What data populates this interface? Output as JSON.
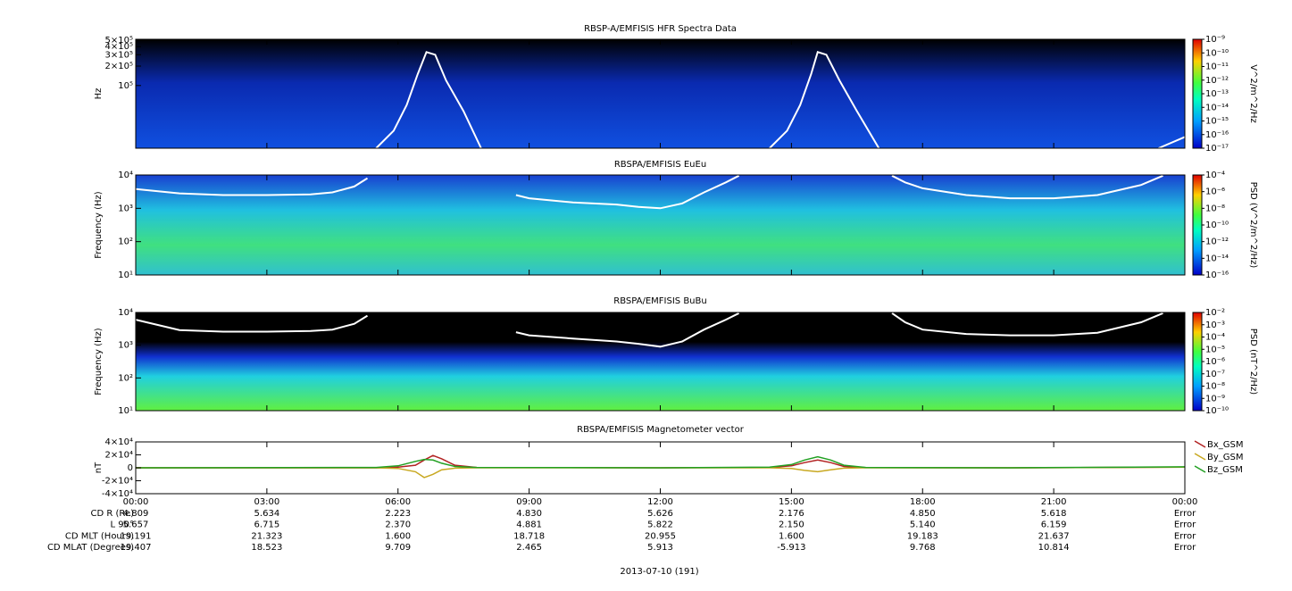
{
  "chart_data": [
    {
      "type": "heatmap",
      "title": "RBSP-A/EMFISIS  HFR Spectra Data",
      "ylabel": "Hz",
      "ylog": true,
      "ylim": [
        10700,
        520000
      ],
      "yticks": [
        {
          "value": 500000,
          "label": "5×10⁵"
        },
        {
          "value": 400000,
          "label": "4×10⁵"
        },
        {
          "value": 300000,
          "label": "3×10⁵"
        },
        {
          "value": 200000,
          "label": "2×10⁵"
        },
        {
          "value": 100000,
          "label": "10⁵"
        }
      ],
      "zlabel": "V^2/m^2/Hz",
      "zlim": [
        1e-17,
        1e-09
      ],
      "zticks": [
        {
          "value": 1e-09,
          "label": "10⁻⁹"
        },
        {
          "value": 1e-10,
          "label": "10⁻¹⁰"
        },
        {
          "value": 1e-11,
          "label": "10⁻¹¹"
        },
        {
          "value": 1e-12,
          "label": "10⁻¹²"
        },
        {
          "value": 1e-13,
          "label": "10⁻¹³"
        },
        {
          "value": 1e-14,
          "label": "10⁻¹⁴"
        },
        {
          "value": 1e-15,
          "label": "10⁻¹⁵"
        },
        {
          "value": 1e-16,
          "label": "10⁻¹⁶"
        },
        {
          "value": 1e-17,
          "label": "10⁻¹⁷"
        }
      ],
      "curve": {
        "color": "#ffffff",
        "x": [
          5.5,
          5.9,
          6.2,
          6.45,
          6.65,
          6.85,
          7.1,
          7.5,
          7.9,
          11,
          14.5,
          14.9,
          15.2,
          15.45,
          15.6,
          15.8,
          16.1,
          16.5,
          17.0,
          20,
          23.4,
          24
        ],
        "values": [
          10700,
          20000,
          50000,
          150000,
          330000,
          300000,
          120000,
          40000,
          10700,
          null,
          10700,
          20000,
          50000,
          150000,
          330000,
          300000,
          120000,
          40000,
          10700,
          null,
          10700,
          16000
        ]
      }
    },
    {
      "type": "heatmap",
      "title": "RBSPA/EMFISIS  EuEu",
      "ylabel": "Frequency (Hz)",
      "ylog": true,
      "ylim": [
        10,
        10000
      ],
      "yticks": [
        {
          "value": 10,
          "label": "10¹"
        },
        {
          "value": 100,
          "label": "10²"
        },
        {
          "value": 1000,
          "label": "10³"
        },
        {
          "value": 10000,
          "label": "10⁴"
        }
      ],
      "zlabel": "PSD (V^2/m^2/Hz)",
      "zlim": [
        1e-16,
        0.0001
      ],
      "zticks": [
        {
          "value": 0.0001,
          "label": "10⁻⁴"
        },
        {
          "value": 1e-06,
          "label": "10⁻⁶"
        },
        {
          "value": 1e-08,
          "label": "10⁻⁸"
        },
        {
          "value": 1e-10,
          "label": "10⁻¹⁰"
        },
        {
          "value": 1e-12,
          "label": "10⁻¹²"
        },
        {
          "value": 1e-14,
          "label": "10⁻¹⁴"
        },
        {
          "value": 1e-16,
          "label": "10⁻¹⁶"
        }
      ],
      "curve": {
        "color": "#ffffff",
        "x": [
          0,
          1,
          2,
          3,
          4,
          4.5,
          5.0,
          5.3,
          7,
          8.7,
          9,
          10,
          11,
          11.5,
          12,
          12.5,
          13,
          13.5,
          13.8,
          15.5,
          17.3,
          17.6,
          18,
          19,
          20,
          21,
          22,
          23,
          23.5
        ],
        "values": [
          3800,
          2800,
          2500,
          2500,
          2600,
          3000,
          4500,
          8000,
          null,
          2500,
          2000,
          1500,
          1300,
          1100,
          1000,
          1400,
          3000,
          6000,
          9500,
          null,
          9500,
          6000,
          4000,
          2500,
          2000,
          2000,
          2500,
          5000,
          9500
        ]
      }
    },
    {
      "type": "heatmap",
      "title": "RBSPA/EMFISIS  BuBu",
      "ylabel": "Frequency (Hz)",
      "ylog": true,
      "ylim": [
        10,
        10000
      ],
      "yticks": [
        {
          "value": 10,
          "label": "10¹"
        },
        {
          "value": 100,
          "label": "10²"
        },
        {
          "value": 1000,
          "label": "10³"
        },
        {
          "value": 10000,
          "label": "10⁴"
        }
      ],
      "zlabel": "PSD (nT^2/Hz)",
      "zlim": [
        1e-10,
        0.01
      ],
      "zticks": [
        {
          "value": 0.01,
          "label": "10⁻²"
        },
        {
          "value": 0.001,
          "label": "10⁻³"
        },
        {
          "value": 0.0001,
          "label": "10⁻⁴"
        },
        {
          "value": 1e-05,
          "label": "10⁻⁵"
        },
        {
          "value": 1e-06,
          "label": "10⁻⁶"
        },
        {
          "value": 1e-07,
          "label": "10⁻⁷"
        },
        {
          "value": 1e-08,
          "label": "10⁻⁸"
        },
        {
          "value": 1e-09,
          "label": "10⁻⁹"
        },
        {
          "value": 1e-10,
          "label": "10⁻¹⁰"
        }
      ],
      "curve": {
        "color": "#ffffff",
        "x": [
          0,
          1,
          2,
          3,
          4,
          4.5,
          5.0,
          5.3,
          7,
          8.7,
          9,
          10,
          11,
          11.5,
          12,
          12.5,
          13,
          13.5,
          13.8,
          15.5,
          17.3,
          17.6,
          18,
          19,
          20,
          21,
          22,
          23,
          23.5
        ],
        "values": [
          6000,
          2900,
          2600,
          2600,
          2700,
          3000,
          4500,
          8000,
          null,
          2500,
          2000,
          1600,
          1300,
          1100,
          900,
          1300,
          3000,
          6000,
          9500,
          null,
          9500,
          5000,
          3000,
          2200,
          2000,
          2000,
          2400,
          5000,
          9500
        ]
      }
    },
    {
      "type": "line",
      "title": "RBSPA/EMFISIS  Magnetometer vector",
      "ylabel": "nT",
      "ylim": [
        -40000,
        40000
      ],
      "yticks": [
        {
          "value": 40000,
          "label": "4×10⁴"
        },
        {
          "value": 20000,
          "label": "2×10⁴"
        },
        0,
        {
          "value": -20000,
          "label": "-2×10⁴"
        },
        {
          "value": -40000,
          "label": "-4×10⁴"
        }
      ],
      "xlim": [
        0,
        24
      ],
      "xticks": [
        {
          "value": 0,
          "label": "00:00"
        },
        {
          "value": 3,
          "label": "03:00"
        },
        {
          "value": 6,
          "label": "06:00"
        },
        {
          "value": 9,
          "label": "09:00"
        },
        {
          "value": 12,
          "label": "12:00"
        },
        {
          "value": 15,
          "label": "15:00"
        },
        {
          "value": 18,
          "label": "18:00"
        },
        {
          "value": 21,
          "label": "21:00"
        },
        {
          "value": 24,
          "label": "00:00"
        }
      ],
      "x": [
        0,
        5.5,
        6.0,
        6.4,
        6.6,
        6.8,
        7.0,
        7.3,
        7.8,
        12,
        14.5,
        15.0,
        15.3,
        15.6,
        15.9,
        16.2,
        16.7,
        20,
        24
      ],
      "series": [
        {
          "name": "Bx_GSM",
          "color": "#b22222",
          "values": [
            0,
            0,
            1000,
            4000,
            12000,
            19000,
            14000,
            4000,
            500,
            0,
            500,
            3000,
            8000,
            12000,
            8000,
            2000,
            300,
            0,
            1000
          ]
        },
        {
          "name": "By_GSM",
          "color": "#c8a820",
          "values": [
            0,
            0,
            -1000,
            -6000,
            -15000,
            -10000,
            -3000,
            -500,
            0,
            0,
            0,
            -1000,
            -4000,
            -6000,
            -3000,
            -500,
            0,
            0,
            1000
          ]
        },
        {
          "name": "Bz_GSM",
          "color": "#22a022",
          "values": [
            0,
            500,
            3000,
            10000,
            13000,
            12000,
            7000,
            2000,
            500,
            0,
            1000,
            5000,
            12000,
            17000,
            12000,
            4000,
            500,
            0,
            1500
          ]
        }
      ]
    }
  ],
  "ephemeris": {
    "labels": [
      "CD R (Re)",
      "L 90°",
      "CD MLT (Hours)",
      "CD MLAT (Degrees)"
    ],
    "rows": [
      [
        "4.809",
        "5.634",
        "2.223",
        "4.830",
        "5.626",
        "2.176",
        "4.850",
        "5.618",
        "Error"
      ],
      [
        "5.657",
        "6.715",
        "2.370",
        "4.881",
        "5.822",
        "2.150",
        "5.140",
        "6.159",
        "Error"
      ],
      [
        "19.191",
        "21.323",
        "1.600",
        "18.718",
        "20.955",
        "1.600",
        "19.183",
        "21.637",
        "Error"
      ],
      [
        "19.407",
        "18.523",
        "9.709",
        "2.465",
        "5.913",
        "-5.913",
        "9.768",
        "10.814",
        "Error"
      ]
    ],
    "date": "2013-07-10 (191)"
  }
}
